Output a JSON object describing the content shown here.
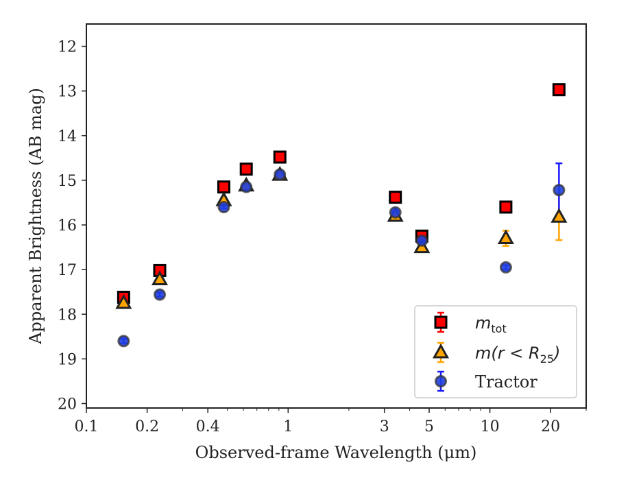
{
  "chart_data": {
    "type": "scatter",
    "xscale": "log",
    "yinverted": true,
    "xlim": [
      0.1,
      30
    ],
    "ylim": [
      11.5,
      20.1
    ],
    "xticks": [
      {
        "value": 0.1,
        "label": "0.1"
      },
      {
        "value": 0.2,
        "label": "0.2"
      },
      {
        "value": 0.4,
        "label": "0.4"
      },
      {
        "value": 1,
        "label": "1"
      },
      {
        "value": 3,
        "label": "3"
      },
      {
        "value": 5,
        "label": "5"
      },
      {
        "value": 10,
        "label": "10"
      },
      {
        "value": 20,
        "label": "20"
      }
    ],
    "yticks": [
      {
        "value": 12,
        "label": "12"
      },
      {
        "value": 13,
        "label": "13"
      },
      {
        "value": 14,
        "label": "14"
      },
      {
        "value": 15,
        "label": "15"
      },
      {
        "value": 16,
        "label": "16"
      },
      {
        "value": 17,
        "label": "17"
      },
      {
        "value": 18,
        "label": "18"
      },
      {
        "value": 19,
        "label": "19"
      },
      {
        "value": 20,
        "label": "20"
      }
    ],
    "xlabel": "Observed-frame Wavelength (μm)",
    "ylabel": "Apparent Brightness (AB mag)",
    "legend_position": "lower-right",
    "series": [
      {
        "name": "m_tot",
        "label_main": "m",
        "label_sub": "tot",
        "marker": "square",
        "fill": "#ff0000",
        "edge": "#000000",
        "errcolor": "#ff0000",
        "points": [
          {
            "x": 0.153,
            "y": 17.62,
            "err": 0.05
          },
          {
            "x": 0.231,
            "y": 17.02,
            "err": 0.05
          },
          {
            "x": 0.48,
            "y": 15.15,
            "err": 0.03
          },
          {
            "x": 0.62,
            "y": 14.75,
            "err": 0.03
          },
          {
            "x": 0.91,
            "y": 14.48,
            "err": 0.03
          },
          {
            "x": 3.4,
            "y": 15.38,
            "err": 0.03
          },
          {
            "x": 4.6,
            "y": 16.25,
            "err": 0.04
          },
          {
            "x": 12.0,
            "y": 15.6,
            "err": 0.04
          },
          {
            "x": 22.0,
            "y": 12.97,
            "err": 0.04
          }
        ]
      },
      {
        "name": "m(r < R25)",
        "label_main": "m(r < R",
        "label_sub": "25",
        "label_end": ")",
        "marker": "triangle",
        "fill": "#ffa500",
        "edge": "#222222",
        "errcolor": "#ffa500",
        "points": [
          {
            "x": 0.153,
            "y": 17.75,
            "err": 0.05
          },
          {
            "x": 0.231,
            "y": 17.22,
            "err": 0.05
          },
          {
            "x": 0.48,
            "y": 15.45,
            "err": 0.03
          },
          {
            "x": 0.62,
            "y": 15.12,
            "err": 0.03
          },
          {
            "x": 0.91,
            "y": 14.88,
            "err": 0.03
          },
          {
            "x": 3.4,
            "y": 15.8,
            "err": 0.03
          },
          {
            "x": 4.6,
            "y": 16.5,
            "err": 0.04
          },
          {
            "x": 12.0,
            "y": 16.3,
            "err": 0.17
          },
          {
            "x": 22.0,
            "y": 15.82,
            "err": 0.52
          }
        ]
      },
      {
        "name": "Tractor",
        "label_main": "Tractor",
        "marker": "circle",
        "fill": "#1f3fe0",
        "edge": "#333333",
        "errcolor": "#1a1aff",
        "points": [
          {
            "x": 0.153,
            "y": 18.6,
            "err": 0.05
          },
          {
            "x": 0.231,
            "y": 17.56,
            "err": 0.05
          },
          {
            "x": 0.48,
            "y": 15.6,
            "err": 0.03
          },
          {
            "x": 0.62,
            "y": 15.15,
            "err": 0.03
          },
          {
            "x": 0.91,
            "y": 14.87,
            "err": 0.03
          },
          {
            "x": 3.4,
            "y": 15.72,
            "err": 0.03
          },
          {
            "x": 4.6,
            "y": 16.35,
            "err": 0.05
          },
          {
            "x": 12.0,
            "y": 16.95,
            "err": 0.05
          },
          {
            "x": 22.0,
            "y": 15.22,
            "err": 0.6
          }
        ]
      }
    ]
  }
}
